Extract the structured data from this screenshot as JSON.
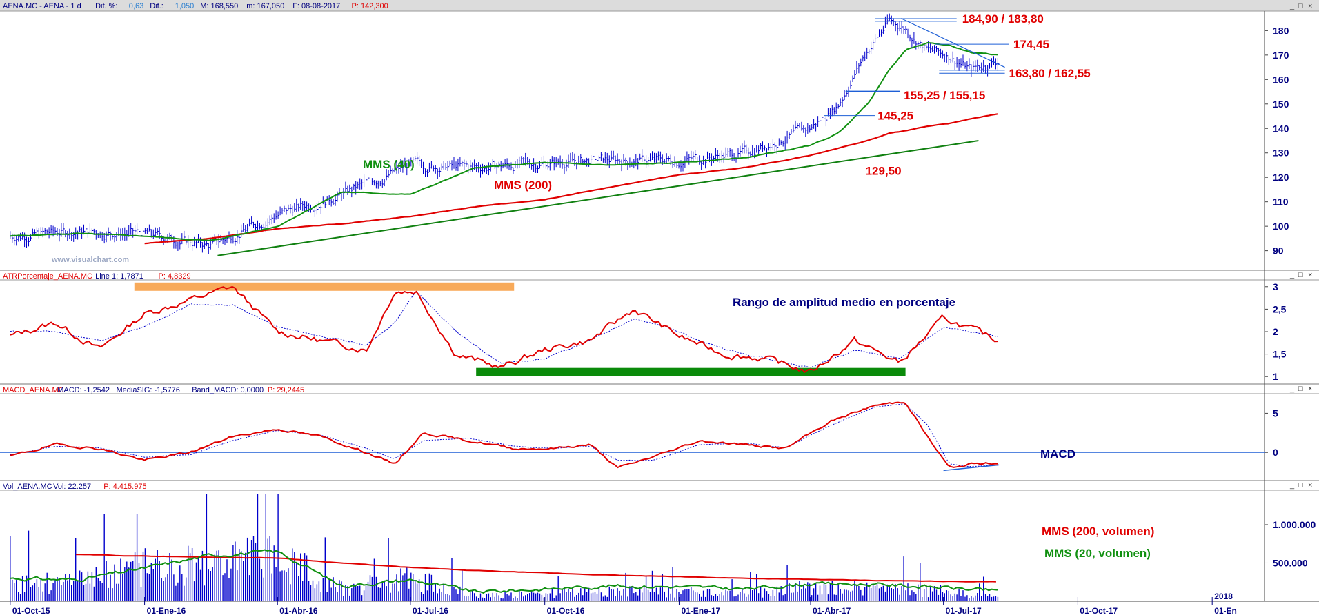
{
  "colors": {
    "price": "#0000cc",
    "ma40": "#109010",
    "ma200": "#e00000",
    "trend": "#108010",
    "level": "#1e5fd6",
    "atr_main": "#e00000",
    "atr_signal": "#0000cc",
    "macd_main": "#e00000",
    "macd_signal": "#0000cc",
    "volume": "#0000cc",
    "vol_ma200": "#e00000",
    "vol_ma20": "#109010",
    "band_orange": "#f8aa5a",
    "band_green": "#0a8a0a",
    "header_bg": "#dcdcdc",
    "watermark": "#9aa6c2"
  },
  "window_controls": {
    "minimize": "_",
    "maximize": "□",
    "close": "×"
  },
  "watermark": "www.visualchart.com",
  "chart_data": [
    {
      "type": "line",
      "panel": "price",
      "header": {
        "title": "AENA.MC - AENA -  1 d",
        "dif_pct_label": "Dif. %:",
        "dif_pct_value": "0,63",
        "dif_label": "Dif.:",
        "dif_value": "1,050",
        "max": "M: 168,550",
        "min": "m: 167,050",
        "date": "F: 08-08-2017",
        "p": "P: 142,300"
      },
      "ylim": [
        82,
        188
      ],
      "yticks": [
        "90",
        "100",
        "110",
        "120",
        "130",
        "140",
        "150",
        "160",
        "170",
        "180"
      ],
      "ytick_values": [
        90,
        100,
        110,
        120,
        130,
        140,
        150,
        160,
        170,
        180
      ],
      "x_dates": [
        "2015-10-01",
        "2015-11-15",
        "2016-01-01",
        "2016-02-15",
        "2016-04-01",
        "2016-05-15",
        "2016-07-01",
        "2016-08-15",
        "2016-10-01",
        "2016-11-15",
        "2017-01-01",
        "2017-02-15",
        "2017-04-01",
        "2017-04-20",
        "2017-05-10",
        "2017-05-25",
        "2017-06-05",
        "2017-06-20",
        "2017-07-05",
        "2017-07-20",
        "2017-08-08"
      ],
      "series": [
        {
          "role": "price",
          "values": [
            96,
            98,
            97,
            92,
            105,
            113,
            125,
            124,
            126,
            127,
            127,
            130,
            140,
            150,
            172,
            184,
            181,
            172,
            170,
            164,
            168
          ]
        },
        {
          "role": "ma40",
          "name": "MMS (40)",
          "values": [
            96,
            97,
            96,
            94,
            100,
            114,
            113,
            124,
            126,
            125,
            126,
            128,
            133,
            138,
            150,
            164,
            172,
            175,
            174,
            171,
            170
          ]
        },
        {
          "role": "ma200",
          "name": "MMS (200)",
          "values": [
            null,
            null,
            93,
            95,
            99,
            101,
            104,
            108,
            111,
            116,
            121,
            124,
            129,
            132,
            135,
            138,
            139,
            141,
            142,
            144,
            146
          ]
        }
      ],
      "trendline": {
        "x": [
          "2016-02-20",
          "2017-07-25"
        ],
        "y": [
          88,
          135
        ]
      },
      "levels": [
        {
          "label": "184,90 / 183,80",
          "values": [
            184.9,
            183.8
          ],
          "x_start": "2017-05-15",
          "x_end": "2017-07-10"
        },
        {
          "label": "174,45",
          "values": [
            174.45
          ],
          "x_start": "2017-06-25",
          "x_end": "2017-08-15"
        },
        {
          "label": "163,80 / 162,55",
          "values": [
            163.8,
            162.55
          ],
          "x_start": "2017-06-28",
          "x_end": "2017-08-12"
        },
        {
          "label": "155,25 / 155,15",
          "values": [
            155.25,
            155.15
          ],
          "x_start": "2017-04-25",
          "x_end": "2017-06-01"
        },
        {
          "label": "145,25",
          "values": [
            145.25
          ],
          "x_start": "2017-04-10",
          "x_end": "2017-05-15"
        },
        {
          "label": "129,50",
          "values": [
            129.5
          ],
          "x_start": "2017-03-01",
          "x_end": "2017-06-05"
        }
      ],
      "annotations": [
        {
          "text": "MMS (40)",
          "role": "ma40"
        },
        {
          "text": "MMS (200)",
          "role": "ma200"
        }
      ]
    },
    {
      "type": "line",
      "panel": "atr",
      "header": {
        "title": "ATRPorcentaje_AENA.MC",
        "line1": "Line 1: 1,7871",
        "p": "P: 4,8329"
      },
      "ylim": [
        0.85,
        3.15
      ],
      "yticks": [
        "1",
        "1,5",
        "2",
        "2,5",
        "3"
      ],
      "ytick_values": [
        1,
        1.5,
        2,
        2.5,
        3
      ],
      "x_dates": [
        "2015-10-01",
        "2015-11-01",
        "2015-12-01",
        "2016-01-01",
        "2016-02-01",
        "2016-03-01",
        "2016-04-01",
        "2016-05-01",
        "2016-06-01",
        "2016-06-20",
        "2016-07-05",
        "2016-08-01",
        "2016-09-01",
        "2016-10-01",
        "2016-11-01",
        "2016-12-01",
        "2017-01-01",
        "2017-02-01",
        "2017-03-01",
        "2017-04-01",
        "2017-05-01",
        "2017-06-01",
        "2017-07-01",
        "2017-08-08"
      ],
      "series": [
        {
          "role": "atr_main",
          "values": [
            1.9,
            2.2,
            1.6,
            2.4,
            2.7,
            3.0,
            2.0,
            1.8,
            1.6,
            2.9,
            2.9,
            1.5,
            1.2,
            1.6,
            1.8,
            2.5,
            1.9,
            1.5,
            1.4,
            1.1,
            1.8,
            1.3,
            2.3,
            1.8
          ]
        },
        {
          "role": "atr_signal",
          "values": [
            2.0,
            2.0,
            1.8,
            2.1,
            2.6,
            2.6,
            2.1,
            1.9,
            1.7,
            2.2,
            2.9,
            2.0,
            1.3,
            1.4,
            1.8,
            2.3,
            2.0,
            1.6,
            1.4,
            1.2,
            1.6,
            1.4,
            2.1,
            1.9
          ]
        }
      ],
      "bands": [
        {
          "role": "band_orange",
          "x_start": "2015-12-25",
          "x_end": "2016-09-10",
          "y": 3.0
        },
        {
          "role": "band_green",
          "x_start": "2016-08-15",
          "x_end": "2017-06-05",
          "y": 1.1
        }
      ],
      "annotations": [
        {
          "text": "Rango de amplitud medio en porcentaje"
        }
      ]
    },
    {
      "type": "line",
      "panel": "macd",
      "header": {
        "title": "MACD_AENA.MC",
        "macd": "MACD: -1,2542",
        "signal": "MediaSIG: -1,5776",
        "band": "Band_MACD: 0,0000",
        "p": "P: 29,2445"
      },
      "ylim": [
        -3.5,
        7.5
      ],
      "yticks": [
        "0",
        "5"
      ],
      "ytick_values": [
        0,
        5
      ],
      "zero_line": 0,
      "x_dates": [
        "2015-10-01",
        "2015-11-01",
        "2015-12-01",
        "2016-01-01",
        "2016-02-01",
        "2016-03-01",
        "2016-04-01",
        "2016-05-01",
        "2016-06-01",
        "2016-06-20",
        "2016-07-10",
        "2016-08-10",
        "2016-09-10",
        "2016-10-05",
        "2016-11-01",
        "2016-11-20",
        "2016-12-15",
        "2017-01-15",
        "2017-02-15",
        "2017-03-15",
        "2017-04-15",
        "2017-05-15",
        "2017-06-05",
        "2017-06-20",
        "2017-07-05",
        "2017-07-20",
        "2017-08-08"
      ],
      "series": [
        {
          "role": "macd_main",
          "values": [
            -0.5,
            1.0,
            0.5,
            -1.0,
            0,
            2.0,
            3.0,
            2.0,
            0,
            -1.5,
            2.5,
            1.5,
            0.5,
            0.5,
            1.0,
            -2.0,
            -0.5,
            1.5,
            1.0,
            0.5,
            4.0,
            6.0,
            6.5,
            2.0,
            -2.0,
            -1.5,
            -1.3
          ]
        },
        {
          "role": "macd_signal",
          "values": [
            -0.3,
            0.8,
            0.6,
            -0.6,
            -0.3,
            1.5,
            2.8,
            2.2,
            0.5,
            -0.8,
            1.5,
            1.8,
            0.8,
            0.5,
            0.8,
            -1.0,
            -1.0,
            1.0,
            1.2,
            0.6,
            3.5,
            5.8,
            6.2,
            3.5,
            -1.5,
            -1.8,
            -1.6
          ]
        }
      ],
      "trendline": {
        "x": [
          "2017-07-01",
          "2017-08-08"
        ],
        "y": [
          -2.3,
          -1.6
        ]
      },
      "annotations": [
        {
          "text": "MACD"
        }
      ]
    },
    {
      "type": "bar",
      "panel": "volume",
      "header": {
        "title": "Vol_AENA.MC",
        "vol": "Vol: 22.257",
        "p": "P: 4.415.975"
      },
      "ylim": [
        0,
        1450000
      ],
      "yticks": [
        "500.000",
        "1.000.000"
      ],
      "ytick_values": [
        500000,
        1000000
      ],
      "x_dates": [
        "2015-10-01",
        "2015-11-15",
        "2016-01-01",
        "2016-02-15",
        "2016-04-01",
        "2016-05-15",
        "2016-07-01",
        "2016-08-15",
        "2016-10-01",
        "2016-11-15",
        "2017-01-01",
        "2017-02-15",
        "2017-04-01",
        "2017-05-15",
        "2017-07-01",
        "2017-08-08"
      ],
      "series": [
        {
          "role": "volume",
          "values": [
            350000,
            380000,
            700000,
            800000,
            900000,
            250000,
            450000,
            120000,
            150000,
            200000,
            180000,
            150000,
            280000,
            250000,
            200000,
            100000
          ]
        },
        {
          "role": "vol_ma200",
          "name": "MMS (200, volumen)",
          "values": [
            null,
            610000,
            590000,
            575000,
            565000,
            500000,
            440000,
            400000,
            370000,
            340000,
            320000,
            300000,
            285000,
            270000,
            260000,
            255000
          ]
        },
        {
          "role": "vol_ma20",
          "name": "MMS (20, volumen)",
          "values": [
            300000,
            280000,
            430000,
            600000,
            650000,
            200000,
            280000,
            120000,
            160000,
            200000,
            190000,
            160000,
            230000,
            220000,
            180000,
            130000
          ]
        }
      ],
      "annotations": [
        {
          "text": "MMS (200, volumen)",
          "role": "vol_ma200"
        },
        {
          "text": "MMS (20, volumen)",
          "role": "vol_ma20"
        }
      ]
    }
  ],
  "x_axis": {
    "ticks": [
      {
        "label": "01-Oct-15",
        "date": "2015-10-01"
      },
      {
        "label": "01-Ene-16",
        "date": "2016-01-01"
      },
      {
        "label": "01-Abr-16",
        "date": "2016-04-01"
      },
      {
        "label": "01-Jul-16",
        "date": "2016-07-01"
      },
      {
        "label": "01-Oct-16",
        "date": "2016-10-01"
      },
      {
        "label": "01-Ene-17",
        "date": "2017-01-01"
      },
      {
        "label": "01-Abr-17",
        "date": "2017-04-01"
      },
      {
        "label": "01-Jul-17",
        "date": "2017-07-01"
      },
      {
        "label": "01-Oct-17",
        "date": "2017-10-01"
      },
      {
        "label": "01-En",
        "date": "2018-01-01"
      }
    ],
    "year_marker": {
      "label": "2018",
      "date": "2018-01-01"
    }
  }
}
